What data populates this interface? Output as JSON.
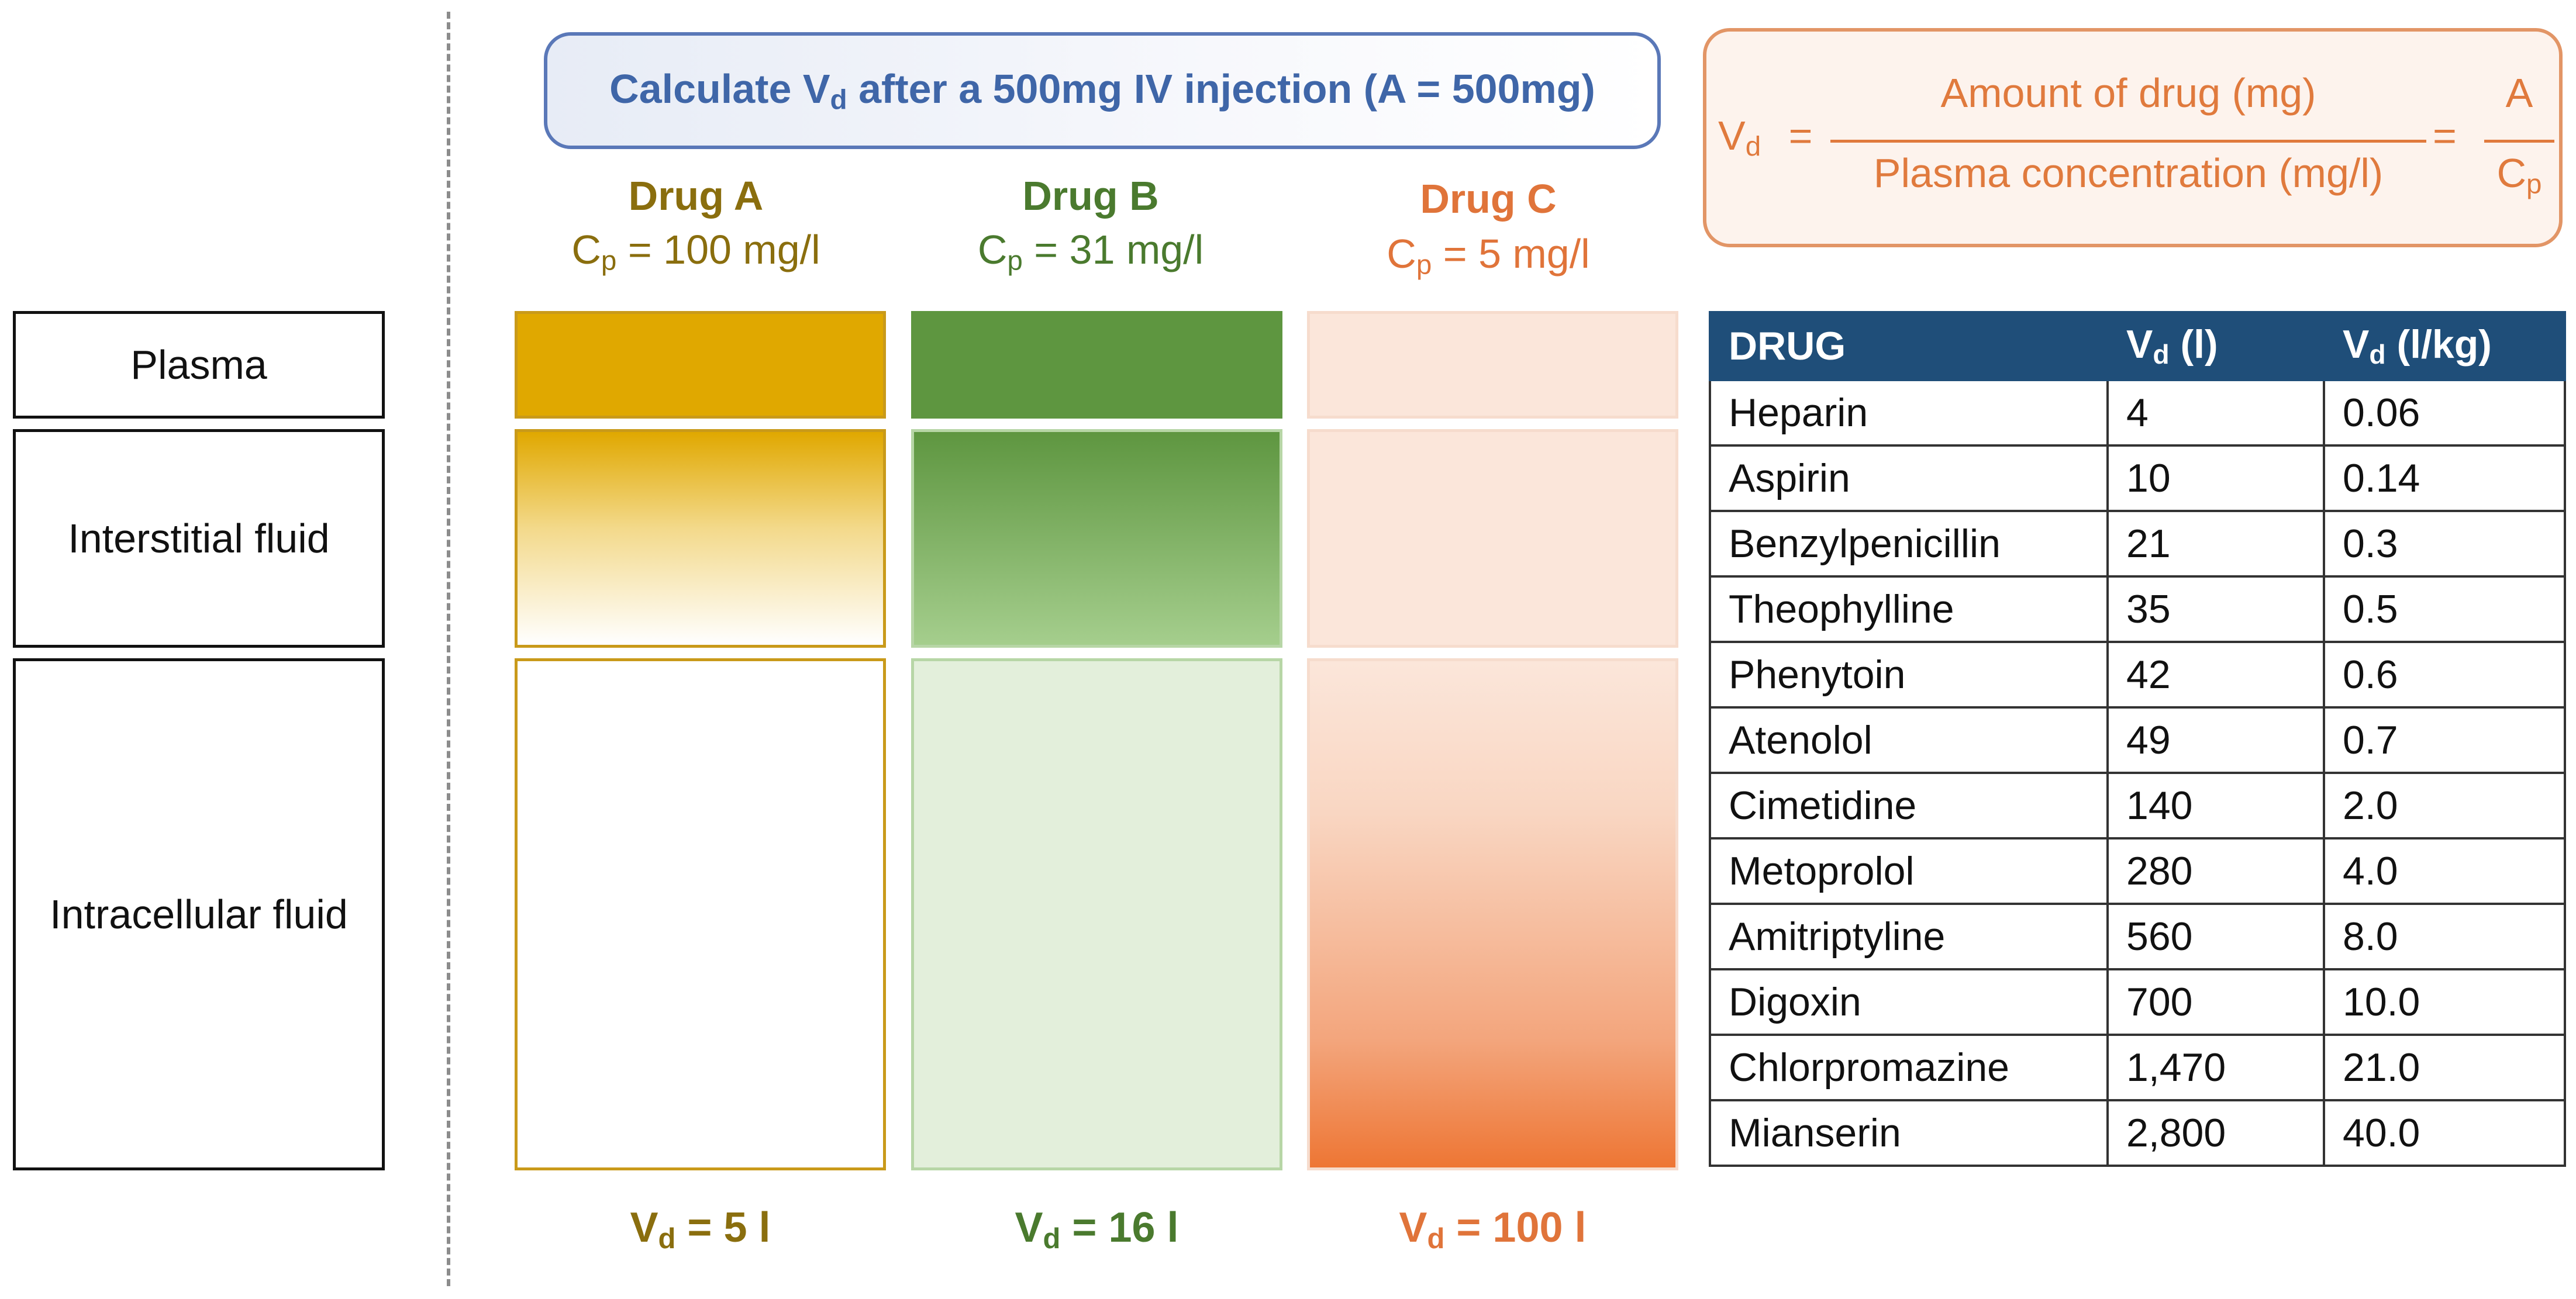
{
  "title": {
    "prefix": "Calculate V",
    "sub": "d",
    "suffix": " after a 500mg IV injection (A = 500mg)"
  },
  "formula": {
    "lhs": "V",
    "lhs_sub": "d",
    "equals": "=",
    "numerator": "Amount of drug (mg)",
    "denominator": "Plasma concentration (mg/l)",
    "equals2": "=",
    "short_num": "A",
    "short_den": "C",
    "short_den_sub": "p"
  },
  "compartments": [
    "Plasma",
    "Interstitial fluid",
    "Intracellular fluid"
  ],
  "drugs": [
    {
      "name": "Drug A",
      "cp_prefix": "C",
      "cp_sub": "p",
      "cp_value": " = 100 mg/l",
      "vd_prefix": "V",
      "vd_sub": "d",
      "vd_value": " = 5 l",
      "color": "#8a6e0e"
    },
    {
      "name": "Drug B",
      "cp_prefix": "C",
      "cp_sub": "p",
      "cp_value": " = 31 mg/l",
      "vd_prefix": "V",
      "vd_sub": "d",
      "vd_value": " = 16 l",
      "color": "#4a7a2e"
    },
    {
      "name": "Drug C",
      "cp_prefix": "C",
      "cp_sub": "p",
      "cp_value": " = 5 mg/l",
      "vd_prefix": "V",
      "vd_sub": "d",
      "vd_value": " = 100 l",
      "color": "#e0743a"
    }
  ],
  "table": {
    "headers": [
      {
        "text": "DRUG",
        "sub": "",
        "suffix": ""
      },
      {
        "text": "V",
        "sub": "d",
        "suffix": " (l)"
      },
      {
        "text": "V",
        "sub": "d",
        "suffix": " (l/kg)"
      }
    ],
    "rows": [
      [
        "Heparin",
        "4",
        "0.06"
      ],
      [
        "Aspirin",
        "10",
        "0.14"
      ],
      [
        "Benzylpenicillin",
        "21",
        "0.3"
      ],
      [
        "Theophylline",
        "35",
        "0.5"
      ],
      [
        "Phenytoin",
        "42",
        "0.6"
      ],
      [
        "Atenolol",
        "49",
        "0.7"
      ],
      [
        "Cimetidine",
        "140",
        "2.0"
      ],
      [
        "Metoprolol",
        "280",
        "4.0"
      ],
      [
        "Amitriptyline",
        "560",
        "8.0"
      ],
      [
        "Digoxin",
        "700",
        "10.0"
      ],
      [
        "Chlorpromazine",
        "1,470",
        "21.0"
      ],
      [
        "Mianserin",
        "2,800",
        "40.0"
      ]
    ]
  }
}
